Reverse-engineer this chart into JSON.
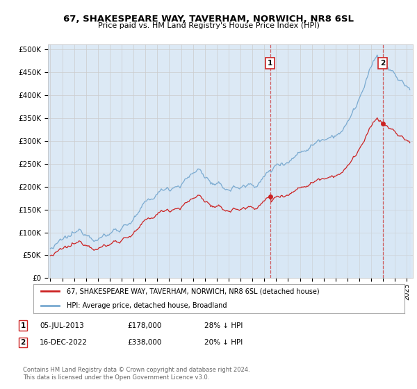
{
  "title": "67, SHAKESPEARE WAY, TAVERHAM, NORWICH, NR8 6SL",
  "subtitle": "Price paid vs. HM Land Registry's House Price Index (HPI)",
  "ytick_values": [
    0,
    50000,
    100000,
    150000,
    200000,
    250000,
    300000,
    350000,
    400000,
    450000,
    500000
  ],
  "xlim_start": 1994.8,
  "xlim_end": 2025.5,
  "ylim_min": 0,
  "ylim_max": 510000,
  "hpi_color": "#7aaad0",
  "hpi_fill_color": "#d0e4f5",
  "price_color": "#cc2222",
  "marker1_date": 2013.5,
  "marker1_price": 178000,
  "marker2_date": 2022.96,
  "marker2_price": 338000,
  "sale1_label": "1",
  "sale2_label": "2",
  "legend1_text": "67, SHAKESPEARE WAY, TAVERHAM, NORWICH, NR8 6SL (detached house)",
  "legend2_text": "HPI: Average price, detached house, Broadland",
  "annotation1": "05-JUL-2013",
  "annotation1_price": "£178,000",
  "annotation1_hpi": "28% ↓ HPI",
  "annotation2": "16-DEC-2022",
  "annotation2_price": "£338,000",
  "annotation2_hpi": "20% ↓ HPI",
  "footer": "Contains HM Land Registry data © Crown copyright and database right 2024.\nThis data is licensed under the Open Government Licence v3.0.",
  "background_color": "#dce9f5",
  "plot_bg_color": "#ffffff"
}
